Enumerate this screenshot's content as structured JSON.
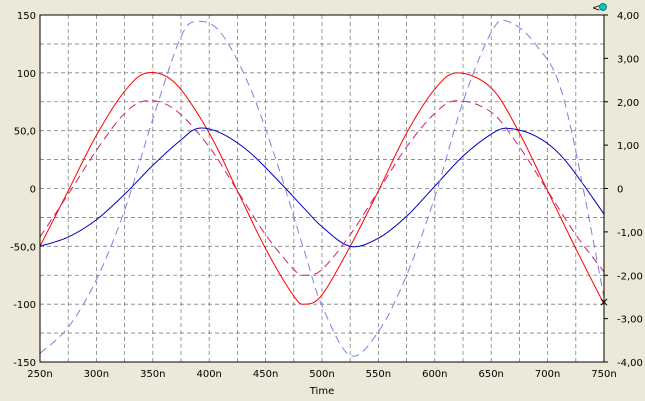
{
  "colors": {
    "background": "#ECE9D8",
    "plot_background": "#FFFFFF",
    "grid": "#808080",
    "series_red_solid": "#FF0000",
    "series_blue_solid": "#0000C0",
    "series_magenta_dashed": "#D0206A",
    "series_lightblue_dashed": "#8080E0",
    "toolbar_icon": "#00C8C8"
  },
  "toolbar": {
    "left_arrow_label": "<",
    "dot_icon": "cyan-circle-icon"
  },
  "chart_data": {
    "type": "line",
    "xlabel": "Time",
    "x_ticks": [
      "250n",
      "300n",
      "350n",
      "400n",
      "450n",
      "500n",
      "550n",
      "600n",
      "650n",
      "700n",
      "750n"
    ],
    "x_range_ns": [
      250,
      750
    ],
    "grid": true,
    "y_left": {
      "range": [
        -150,
        150
      ],
      "ticks": [
        "150",
        "100",
        "50,0",
        "0",
        "-50,0",
        "-100",
        "-150"
      ]
    },
    "y_right": {
      "range": [
        -4,
        4
      ],
      "ticks": [
        "4,00",
        "3,00",
        "2,00",
        "1,00",
        "0",
        "-1,00",
        "-2,00",
        "-3,00",
        "-4,00"
      ]
    },
    "series": [
      {
        "style": "solid",
        "color": "#FF0000",
        "axis": "left",
        "x": [
          250,
          275,
          300,
          325,
          345,
          370,
          400,
          425,
          450,
          475,
          485,
          500,
          525,
          550,
          575,
          600,
          620,
          650,
          675,
          700,
          725,
          750
        ],
        "y": [
          -50,
          -2,
          46,
          84,
          100,
          91,
          48,
          -2,
          -52,
          -93,
          -100,
          -92,
          -50,
          -2,
          48,
          86,
          100,
          87,
          48,
          -2,
          -52,
          -100
        ]
      },
      {
        "style": "solid",
        "color": "#0000C0",
        "axis": "left",
        "x": [
          250,
          275,
          300,
          325,
          350,
          375,
          390,
          410,
          435,
          460,
          485,
          500,
          525,
          550,
          575,
          600,
          625,
          650,
          665,
          690,
          715,
          750
        ],
        "y": [
          -50,
          -42,
          -27,
          -5,
          20,
          42,
          52,
          48,
          32,
          8,
          -18,
          -33,
          -50,
          -43,
          -24,
          2,
          28,
          47,
          52,
          45,
          25,
          -22
        ]
      },
      {
        "style": "dashed",
        "color": "#D0206A",
        "axis": "left",
        "x": [
          250,
          275,
          300,
          325,
          345,
          370,
          400,
          425,
          450,
          475,
          485,
          500,
          525,
          550,
          575,
          600,
          620,
          650,
          675,
          700,
          725,
          750
        ],
        "y": [
          -42,
          -5,
          33,
          65,
          76,
          68,
          36,
          -2,
          -40,
          -70,
          -75,
          -70,
          -40,
          -2,
          36,
          65,
          76,
          66,
          36,
          -2,
          -40,
          -72
        ]
      },
      {
        "style": "dashed",
        "color": "#8080E0",
        "axis": "right",
        "x": [
          250,
          275,
          300,
          325,
          350,
          375,
          390,
          410,
          435,
          460,
          485,
          500,
          525,
          550,
          575,
          600,
          625,
          650,
          665,
          690,
          715,
          750
        ],
        "y": [
          -3.8,
          -3.2,
          -2.1,
          -0.5,
          1.6,
          3.5,
          3.85,
          3.6,
          2.4,
          0.6,
          -1.5,
          -2.7,
          -3.85,
          -3.3,
          -2.0,
          -0.2,
          2.0,
          3.6,
          3.85,
          3.3,
          2.0,
          -2.5
        ]
      }
    ],
    "cursor_marker": {
      "x": 750,
      "y_left": -98,
      "symbol": "×"
    }
  }
}
